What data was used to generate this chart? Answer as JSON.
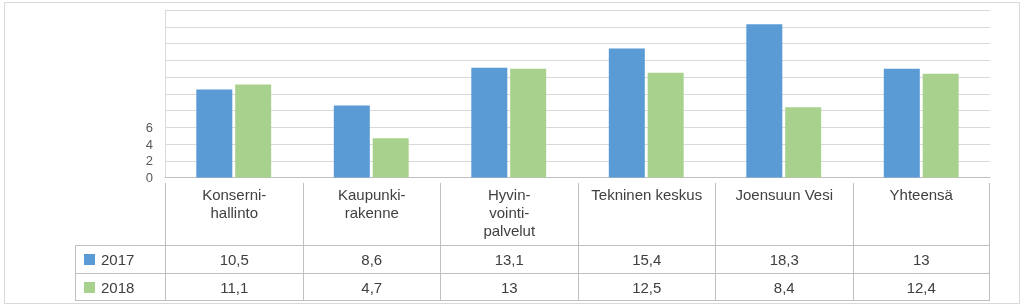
{
  "chart_data": {
    "type": "bar",
    "categories": [
      "Konserni-hallinto",
      "Kaupunki-rakenne",
      "Hyvin-vointi-palvelut",
      "Tekninen keskus",
      "Joensuun Vesi",
      "Yhteensä"
    ],
    "series": [
      {
        "name": "2017",
        "color": "#5b9bd5",
        "values": [
          10.5,
          8.6,
          13.1,
          15.4,
          18.3,
          13
        ],
        "value_labels": [
          "10,5",
          "8,6",
          "13,1",
          "15,4",
          "18,3",
          "13"
        ]
      },
      {
        "name": "2018",
        "color": "#a9d18e",
        "values": [
          11.1,
          4.7,
          13,
          12.5,
          8.4,
          12.4
        ],
        "value_labels": [
          "11,1",
          "4,7",
          "13",
          "12,5",
          "8,4",
          "12,4"
        ]
      }
    ],
    "ylim": [
      0,
      20
    ],
    "yticks": [
      0,
      2,
      4,
      6,
      {
        "value": 8,
        "label": null
      },
      {
        "value": 10,
        "label": null
      },
      {
        "value": 12,
        "label": null
      },
      {
        "value": 14,
        "label": null
      },
      {
        "value": 16,
        "label": null
      },
      {
        "value": 18,
        "label": null
      },
      {
        "value": 20,
        "label": null
      }
    ],
    "grid": "y",
    "legend": "bottom left"
  }
}
